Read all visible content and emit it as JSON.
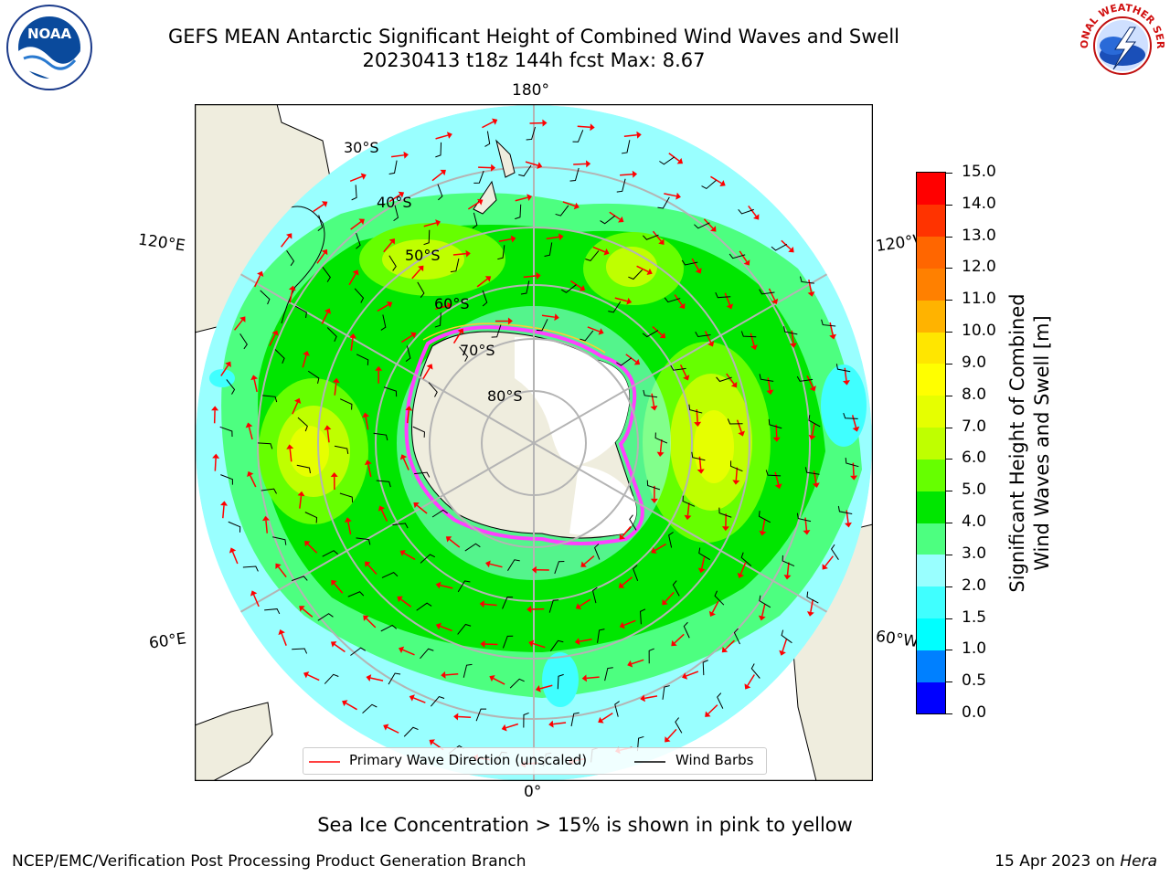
{
  "title": {
    "line1": "GEFS MEAN Antarctic Significant Height of Combined Wind Waves and Swell",
    "line2": "20230413 t18z 144h fcst   Max: 8.67"
  },
  "map": {
    "projection": "south-polar-stereographic",
    "longitude_labels": {
      "top": "180°",
      "bottom": "0°",
      "upper_left": "120°E",
      "lower_left": "60°E",
      "upper_right": "120°W",
      "lower_right": "60°W"
    },
    "latitude_labels": [
      "30°S",
      "40°S",
      "50°S",
      "60°S",
      "70°S",
      "80°S"
    ],
    "colors": {
      "land": "#efedde",
      "antarctica": "#ffffff",
      "graticule": "#b4b4b4",
      "sea_ice": "#ff40ff",
      "wave_arrow": "#ff0000",
      "wind_barb": "#000000"
    }
  },
  "colorbar": {
    "label_line1": "Significant Height of Combined",
    "label_line2": "Wind Waves and Swell [m]",
    "ticks": [
      "0.0",
      "0.5",
      "1.0",
      "1.5",
      "2.0",
      "3.0",
      "4.0",
      "5.0",
      "6.0",
      "7.0",
      "8.0",
      "9.0",
      "10.0",
      "11.0",
      "12.0",
      "13.0",
      "14.0",
      "15.0"
    ],
    "colors": [
      "#0000ff",
      "#0080ff",
      "#00ffff",
      "#40ffff",
      "#99ffff",
      "#4dff80",
      "#00e600",
      "#66ff00",
      "#bfff00",
      "#e6ff00",
      "#ffff00",
      "#ffe600",
      "#ffb300",
      "#ff8000",
      "#ff6600",
      "#ff3300",
      "#ff0000"
    ]
  },
  "legend": {
    "primary_wave": "Primary Wave Direction (unscaled)",
    "wind_barbs": "Wind Barbs"
  },
  "note": "Sea Ice Concentration > 15% is shown in pink to yellow",
  "footer": {
    "left": "NCEP/EMC/Verification Post Processing Product Generation Branch",
    "right_date": "15 Apr 2023 on ",
    "right_machine": "Hera"
  },
  "logos": {
    "left": "NOAA",
    "left_ring_text": "NATIONAL OCEANIC AND ATMOSPHERIC ADMINISTRATION · U.S. DEPARTMENT OF COMMERCE",
    "right_ring_text": "NATIONAL WEATHER SERVICE"
  }
}
